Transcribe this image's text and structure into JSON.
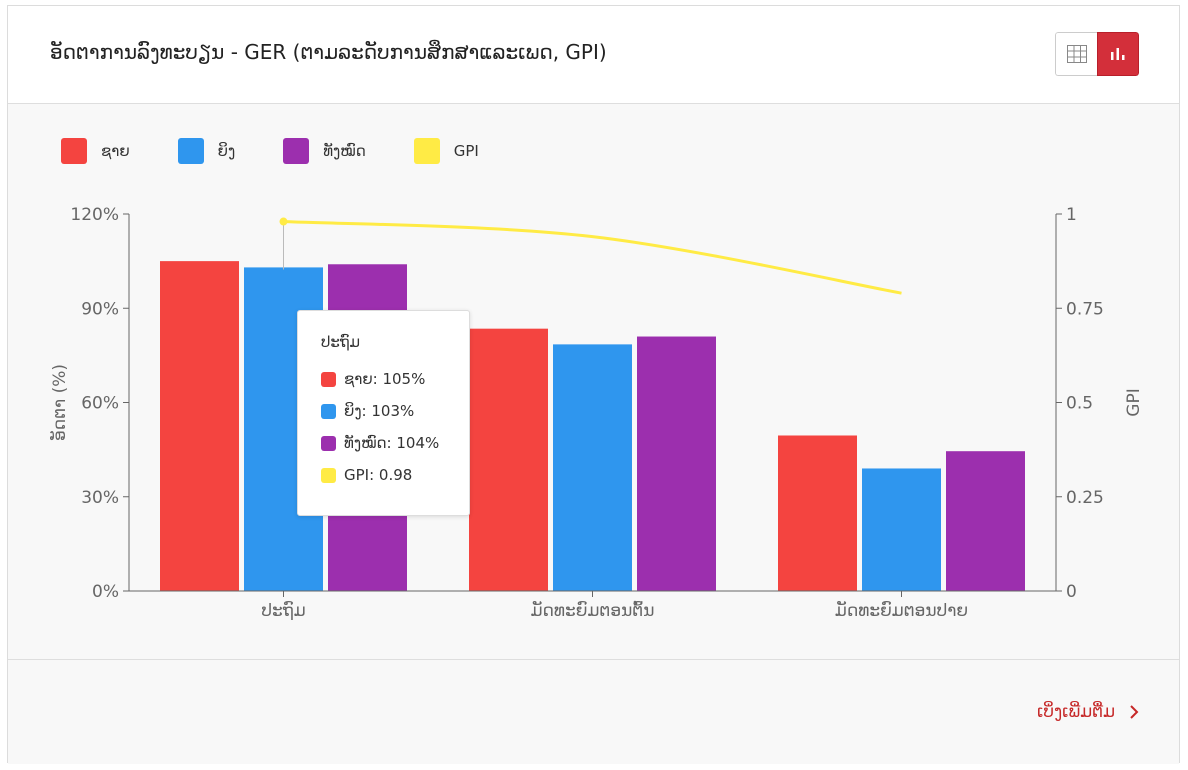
{
  "header": {
    "title": "ອັດຕາການລົງທະບຽນ - GER (ຕາມລະດັບການສຶກສາແລະເພດ, GPI)",
    "table_view_icon": "grid-icon",
    "chart_view_icon": "bar-chart-icon"
  },
  "footer": {
    "see_more_label": "ເບິ່ງເພີ່ມຕື່ມ",
    "see_more_icon": "chevron-right-icon"
  },
  "colors": {
    "male": "#f44440",
    "female": "#2f96ee",
    "total": "#9c2fae",
    "gpi": "#ffeb45",
    "accent": "#d32f3a"
  },
  "chart_data": {
    "type": "bar",
    "categories": [
      "ປະຖົມ",
      "ມັດທະຍົມຕອນຕົ້ນ",
      "ມັດທະຍົມຕອນປາຍ"
    ],
    "series": [
      {
        "name": "ຊາຍ",
        "type": "bar",
        "axis": "left",
        "values": [
          105,
          83.5,
          49.5
        ]
      },
      {
        "name": "ຍິງ",
        "type": "bar",
        "axis": "left",
        "values": [
          103,
          78.5,
          39
        ]
      },
      {
        "name": "ທັງໝົດ",
        "type": "bar",
        "axis": "left",
        "values": [
          104,
          81,
          44.5
        ]
      },
      {
        "name": "GPI",
        "type": "line",
        "axis": "right",
        "values": [
          0.98,
          0.94,
          0.79
        ]
      }
    ],
    "y_left": {
      "label": "ອັດຕາ (%)",
      "range": [
        0,
        120
      ],
      "ticks": [
        0,
        30,
        60,
        90,
        120
      ],
      "tick_labels": [
        "0%",
        "30%",
        "60%",
        "90%",
        "120%"
      ]
    },
    "y_right": {
      "label": "GPI",
      "range": [
        0,
        1
      ],
      "ticks": [
        0,
        0.25,
        0.5,
        0.75,
        1
      ],
      "tick_labels": [
        "0",
        "0.25",
        "0.5",
        "0.75",
        "1"
      ]
    },
    "legend_position": "top-left",
    "grid": false,
    "tooltip": {
      "title": "ປະຖົມ",
      "rows": [
        {
          "text": "ຊາຍ: 105%"
        },
        {
          "text": "ຍິງ: 103%"
        },
        {
          "text": "ທັງໝົດ: 104%"
        },
        {
          "text": "GPI: 0.98"
        }
      ]
    }
  }
}
